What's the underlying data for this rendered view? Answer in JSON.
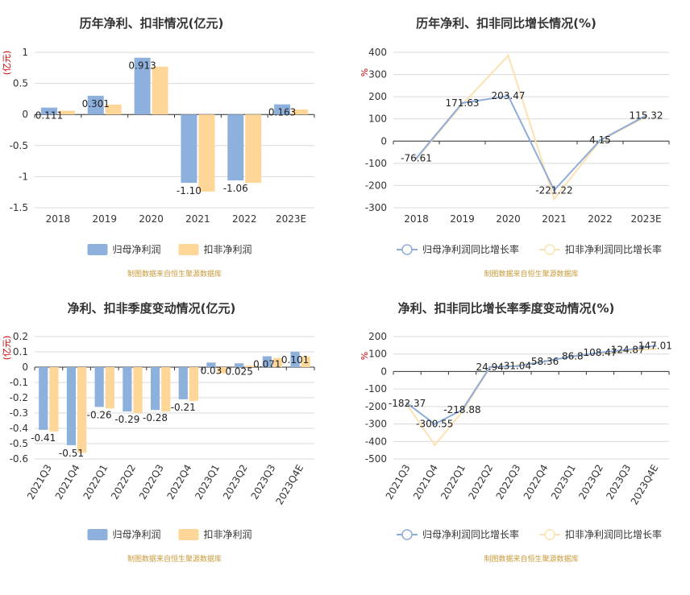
{
  "colors": {
    "blue": "#8eb0dc",
    "orange": "#fdd698",
    "blue_line": "#8eacd8",
    "orange_line": "#fbe2b2"
  },
  "source_text": "制图数据来自恒生聚源数据库",
  "chart_data": [
    {
      "id": "annual-profit",
      "type": "bar",
      "title": "历年净利、扣非情况(亿元)",
      "ylabel": "(亿元)",
      "categories": [
        "2018",
        "2019",
        "2020",
        "2021",
        "2022",
        "2023E"
      ],
      "ylim": [
        -1.5,
        1
      ],
      "yticks": [
        1,
        0.5,
        0,
        -0.5,
        -1,
        -1.5
      ],
      "series": [
        {
          "name": "归母净利润",
          "values": [
            0.111,
            0.301,
            0.913,
            -1.1,
            -1.06,
            0.163
          ],
          "labels": [
            "0.111",
            "0.301",
            "0.913",
            "-1.10",
            "-1.06",
            "0.163"
          ]
        },
        {
          "name": "扣非净利润",
          "values": [
            0.06,
            0.16,
            0.77,
            -1.24,
            -1.1,
            0.08
          ]
        }
      ],
      "grid": true,
      "legend": "bottom-center"
    },
    {
      "id": "annual-growth",
      "type": "line",
      "title": "历年净利、扣非同比增长情况(%)",
      "ylabel": "%",
      "categories": [
        "2018",
        "2019",
        "2020",
        "2021",
        "2022",
        "2023E"
      ],
      "ylim": [
        -300,
        400
      ],
      "yticks": [
        400,
        300,
        200,
        100,
        0,
        -100,
        -200,
        -300
      ],
      "series": [
        {
          "name": "归母净利润同比增长率",
          "values": [
            -76.61,
            171.63,
            203.47,
            -221.22,
            4.15,
            115.32
          ],
          "labels": [
            "-76.61",
            "171.63",
            "203.47",
            "-221.22",
            "4.15",
            "115.32"
          ]
        },
        {
          "name": "扣非净利润同比增长率",
          "values": [
            -80,
            165,
            385,
            -260,
            2,
            110
          ]
        }
      ],
      "grid": true,
      "legend": "bottom-center"
    },
    {
      "id": "quarterly-profit",
      "type": "bar",
      "title": "净利、扣非季度变动情况(亿元)",
      "ylabel": "(亿元)",
      "categories": [
        "2021Q3",
        "2021Q4",
        "2022Q1",
        "2022Q2",
        "2022Q3",
        "2022Q4",
        "2023Q1",
        "2023Q2",
        "2023Q3",
        "2023Q4E"
      ],
      "ylim": [
        -0.6,
        0.2
      ],
      "yticks": [
        0.2,
        0.1,
        0,
        -0.1,
        -0.2,
        -0.3,
        -0.4,
        -0.5,
        -0.6
      ],
      "series": [
        {
          "name": "归母净利润",
          "values": [
            -0.41,
            -0.51,
            -0.26,
            -0.29,
            -0.28,
            -0.21,
            0.03,
            0.025,
            0.071,
            0.101
          ],
          "labels": [
            "-0.41",
            "-0.51",
            "-0.26",
            "-0.29",
            "-0.28",
            "-0.21",
            "0.03",
            "0.025",
            "0.071",
            "0.101"
          ]
        },
        {
          "name": "扣非净利润",
          "values": [
            -0.42,
            -0.56,
            -0.27,
            -0.3,
            -0.29,
            -0.22,
            -0.04,
            0.01,
            0.06,
            0.07
          ]
        }
      ],
      "grid": true,
      "legend": "bottom-center"
    },
    {
      "id": "quarterly-growth",
      "type": "line",
      "title": "净利、扣非同比增长率季度变动情况(%)",
      "ylabel": "%",
      "categories": [
        "2021Q3",
        "2021Q4",
        "2022Q1",
        "2022Q2",
        "2022Q3",
        "2022Q4",
        "2023Q1",
        "2023Q2",
        "2023Q3",
        "2023Q4E"
      ],
      "ylim": [
        -500,
        200
      ],
      "yticks": [
        200,
        100,
        0,
        -100,
        -200,
        -300,
        -400,
        -500
      ],
      "series": [
        {
          "name": "归母净利润同比增长率",
          "values": [
            -182.37,
            -300.55,
            -218.88,
            24.94,
            31.04,
            58.36,
            86.8,
            108.47,
            124.87,
            147.01
          ],
          "labels": [
            "-182.37",
            "-300.55",
            "-218.88",
            "24.94",
            "31.04",
            "58.36",
            "86.8",
            "108.47",
            "124.87",
            "147.01"
          ]
        },
        {
          "name": "扣非净利润同比增长率",
          "values": [
            -190,
            -420,
            -230,
            20,
            35,
            60,
            85,
            105,
            118,
            130
          ]
        }
      ],
      "grid": true,
      "legend": "bottom-center"
    }
  ]
}
